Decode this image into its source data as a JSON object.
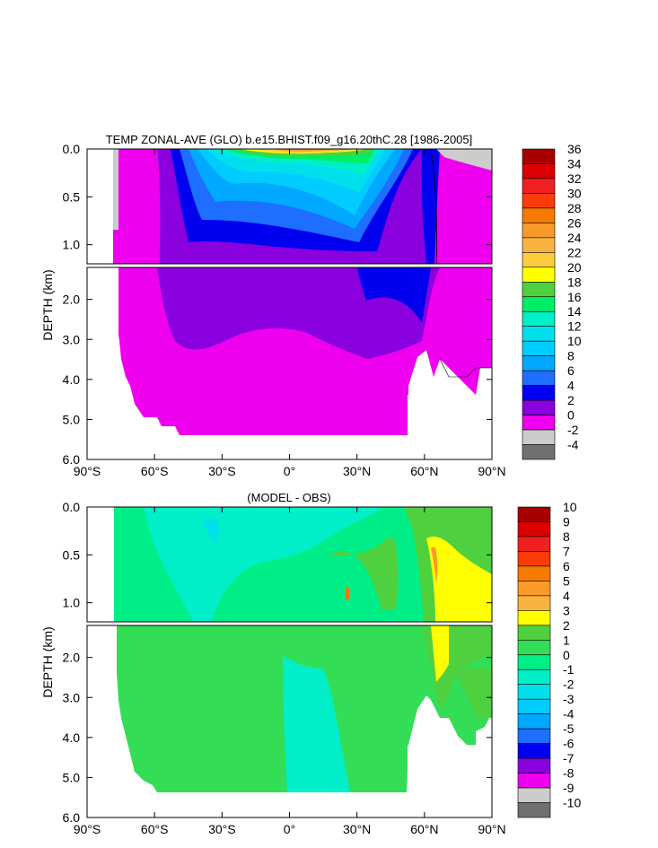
{
  "chart_data": [
    {
      "type": "contour",
      "title": "TEMP ZONAL-AVE (GLO) b.e15.BHIST.f09_g16.20thC.28 [1986-2005]",
      "ylabel": "DEPTH (km)",
      "xlim": [
        -90,
        90
      ],
      "ylim": [
        6.0,
        0.0
      ],
      "ylim_upper_panel": [
        1.2,
        0.0
      ],
      "ylim_lower_panel": [
        6.0,
        1.2
      ],
      "x_ticks": [
        "90°S",
        "60°S",
        "30°S",
        "0°",
        "30°N",
        "60°N",
        "90°N"
      ],
      "x_tick_values": [
        -90,
        -60,
        -30,
        0,
        30,
        60,
        90
      ],
      "y_ticks_upper": [
        "0.0",
        "0.5",
        "1.0"
      ],
      "y_tick_values_upper": [
        0.0,
        0.5,
        1.0
      ],
      "y_ticks_lower": [
        "2.0",
        "3.0",
        "4.0",
        "5.0",
        "6.0"
      ],
      "y_tick_values_lower": [
        2.0,
        3.0,
        4.0,
        5.0,
        6.0
      ],
      "colorbar": {
        "labels": [
          "36",
          "34",
          "32",
          "30",
          "28",
          "26",
          "24",
          "22",
          "20",
          "18",
          "16",
          "14",
          "12",
          "10",
          "8",
          "6",
          "4",
          "2",
          "0",
          "-2",
          "-4"
        ],
        "colors": [
          "#a80000",
          "#dc0000",
          "#f02020",
          "#fa3c0a",
          "#f77a00",
          "#f99a2a",
          "#f9b240",
          "#fbcc3c",
          "#ffff00",
          "#4fd03f",
          "#00ee66",
          "#00eec8",
          "#00e0ec",
          "#00ccff",
          "#00a8ff",
          "#1e6eff",
          "#0000ee",
          "#8a00de",
          "#ee00ee",
          "#cccccc",
          "#707070"
        ]
      }
    },
    {
      "type": "contour",
      "title": "(MODEL - OBS)",
      "ylabel": "DEPTH (km)",
      "xlim": [
        -90,
        90
      ],
      "ylim": [
        6.0,
        0.0
      ],
      "x_ticks": [
        "90°S",
        "60°S",
        "30°S",
        "0°",
        "30°N",
        "60°N",
        "90°N"
      ],
      "x_tick_values": [
        -90,
        -60,
        -30,
        0,
        30,
        60,
        90
      ],
      "y_ticks_upper": [
        "0.0",
        "0.5",
        "1.0"
      ],
      "y_tick_values_upper": [
        0.0,
        0.5,
        1.0
      ],
      "y_ticks_lower": [
        "2.0",
        "3.0",
        "4.0",
        "5.0",
        "6.0"
      ],
      "y_tick_values_lower": [
        2.0,
        3.0,
        4.0,
        5.0,
        6.0
      ],
      "colorbar": {
        "labels": [
          "10",
          "9",
          "8",
          "7",
          "6",
          "5",
          "4",
          "3",
          "2",
          "1",
          "0",
          "-1",
          "-2",
          "-3",
          "-4",
          "-5",
          "-6",
          "-7",
          "-8",
          "-9",
          "-10"
        ],
        "colors": [
          "#a80000",
          "#dc0000",
          "#f02020",
          "#fa3c0a",
          "#f77a00",
          "#f99a2a",
          "#f9b240",
          "#ffff00",
          "#4fd03f",
          "#33dd55",
          "#00ee88",
          "#00eec8",
          "#00e0ec",
          "#00ccff",
          "#00a8ff",
          "#1e6eff",
          "#0000ee",
          "#8a00de",
          "#ee00ee",
          "#cccccc",
          "#707070"
        ]
      }
    }
  ]
}
